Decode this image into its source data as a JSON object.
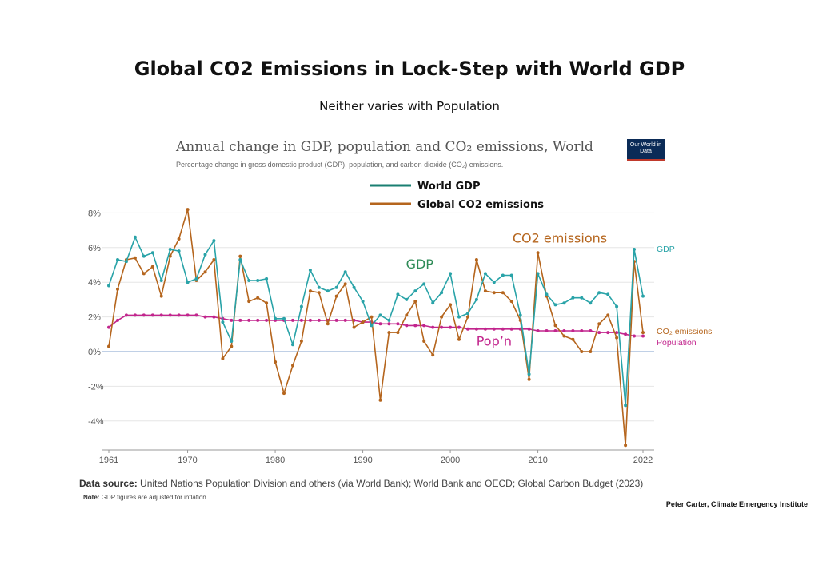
{
  "page": {
    "title": "Global CO2 Emissions in Lock-Step with World GDP",
    "subtitle": "Neither varies with Population",
    "chart_title": "Annual change in GDP, population and CO₂ emissions, World",
    "chart_subtitle": "Percentage change in gross domestic product (GDP), population, and carbon dioxide (CO₂) emissions.",
    "logo": "Our World in Data",
    "source_label": "Data source:",
    "source_text": "United Nations Population Division and others (via World Bank); World Bank and OECD; Global Carbon Budget (2023)",
    "note_label": "Note:",
    "note_text": "GDP figures are adjusted for inflation.",
    "credit": "Peter Carter, Climate Emergency Institute"
  },
  "chart_data": {
    "type": "line",
    "xlim": [
      1961,
      2022
    ],
    "ylim": [
      -5.5,
      8.5
    ],
    "yticks": [
      {
        "v": 8,
        "label": "8%"
      },
      {
        "v": 6,
        "label": "6%"
      },
      {
        "v": 4,
        "label": "4%"
      },
      {
        "v": 2,
        "label": "2%"
      },
      {
        "v": 0,
        "label": "0%"
      },
      {
        "v": -2,
        "label": "-2%"
      },
      {
        "v": -4,
        "label": "-4%"
      }
    ],
    "xticks": [
      {
        "v": 1961,
        "label": "1961"
      },
      {
        "v": 1970,
        "label": "1970"
      },
      {
        "v": 1980,
        "label": "1980"
      },
      {
        "v": 1990,
        "label": "1990"
      },
      {
        "v": 2000,
        "label": "2000"
      },
      {
        "v": 2010,
        "label": "2010"
      },
      {
        "v": 2022,
        "label": "2022"
      }
    ],
    "grid": true,
    "legend": [
      {
        "label": "World GDP",
        "color": "#1a7f72"
      },
      {
        "label": "Global CO2 emissions",
        "color": "#b5651d"
      }
    ],
    "series": [
      {
        "name": "GDP",
        "color": "#29a3a8",
        "marker": true,
        "end_label": "GDP",
        "x_start": 1961,
        "values": [
          3.8,
          5.3,
          5.2,
          6.6,
          5.5,
          5.7,
          4.1,
          5.9,
          5.8,
          4.0,
          4.2,
          5.6,
          6.4,
          1.7,
          0.6,
          5.3,
          4.1,
          4.1,
          4.2,
          1.9,
          1.9,
          0.4,
          2.6,
          4.7,
          3.7,
          3.5,
          3.7,
          4.6,
          3.7,
          2.9,
          1.5,
          2.1,
          1.8,
          3.3,
          3.0,
          3.5,
          3.9,
          2.8,
          3.4,
          4.5,
          2.0,
          2.2,
          3.0,
          4.5,
          4.0,
          4.4,
          4.4,
          2.1,
          -1.3,
          4.5,
          3.3,
          2.7,
          2.8,
          3.1,
          3.1,
          2.8,
          3.4,
          3.3,
          2.6,
          -3.1,
          5.9,
          3.2
        ]
      },
      {
        "name": "CO₂ emissions",
        "color": "#b5651d",
        "marker": true,
        "end_label": "CO₂ emissions",
        "x_start": 1961,
        "values": [
          0.3,
          3.6,
          5.3,
          5.4,
          4.5,
          4.9,
          3.2,
          5.5,
          6.5,
          8.2,
          4.1,
          4.6,
          5.3,
          -0.4,
          0.3,
          5.5,
          2.9,
          3.1,
          2.8,
          -0.6,
          -2.4,
          -0.8,
          0.6,
          3.5,
          3.4,
          1.6,
          3.2,
          3.9,
          1.4,
          1.7,
          2.0,
          -2.8,
          1.1,
          1.1,
          2.1,
          2.9,
          0.6,
          -0.2,
          2.0,
          2.7,
          0.7,
          2.0,
          5.3,
          3.5,
          3.4,
          3.4,
          2.9,
          1.8,
          -1.6,
          5.7,
          3.2,
          1.5,
          0.9,
          0.7,
          0.0,
          0.0,
          1.6,
          2.1,
          0.8,
          -5.4,
          5.2,
          1.1
        ]
      },
      {
        "name": "Population",
        "color": "#c2258d",
        "marker": true,
        "end_label": "Population",
        "x_start": 1961,
        "values": [
          1.4,
          1.8,
          2.1,
          2.1,
          2.1,
          2.1,
          2.1,
          2.1,
          2.1,
          2.1,
          2.1,
          2.0,
          2.0,
          1.9,
          1.8,
          1.8,
          1.8,
          1.8,
          1.8,
          1.8,
          1.8,
          1.8,
          1.8,
          1.8,
          1.8,
          1.8,
          1.8,
          1.8,
          1.8,
          1.7,
          1.7,
          1.6,
          1.6,
          1.6,
          1.5,
          1.5,
          1.5,
          1.4,
          1.4,
          1.4,
          1.4,
          1.3,
          1.3,
          1.3,
          1.3,
          1.3,
          1.3,
          1.3,
          1.3,
          1.2,
          1.2,
          1.2,
          1.2,
          1.2,
          1.2,
          1.2,
          1.1,
          1.1,
          1.1,
          1.0,
          0.9,
          0.9
        ]
      }
    ],
    "annotations": [
      {
        "text": "GDP",
        "x": 1996.5,
        "y": 4.8,
        "color": "#2e8b57"
      },
      {
        "text": "CO2 emissions",
        "x": 2012.5,
        "y": 6.3,
        "color": "#b5651d"
      },
      {
        "text": "Pop’n",
        "x": 2005,
        "y": 0.35,
        "color": "#c2258d"
      }
    ]
  }
}
